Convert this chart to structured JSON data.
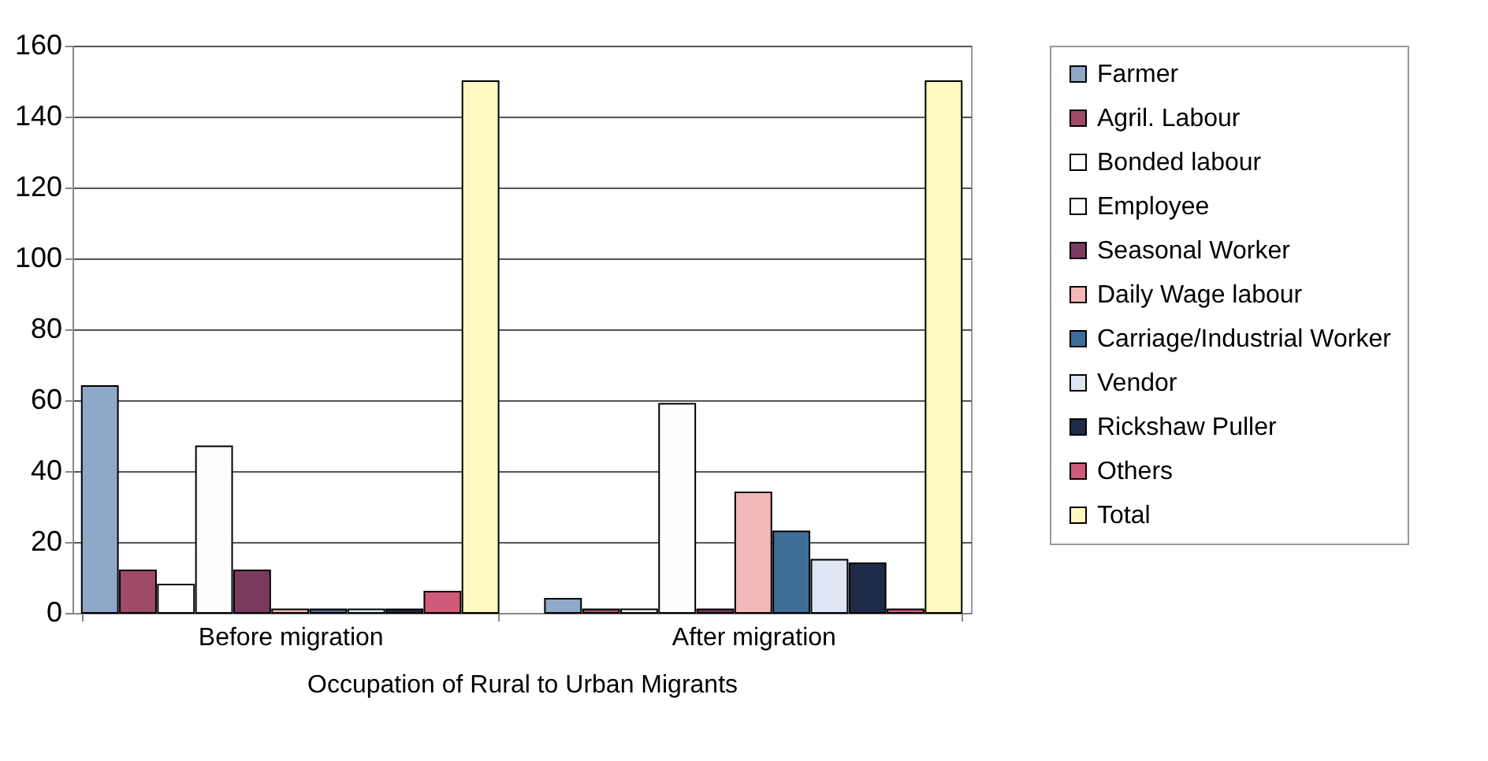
{
  "chart_data": {
    "type": "bar",
    "xlabel": "Occupation of Rural to Urban Migrants",
    "categories": [
      "Before migration",
      "After migration"
    ],
    "series": [
      {
        "name": "Farmer",
        "color": "#8fa8c8",
        "values": [
          64,
          4
        ]
      },
      {
        "name": "Agril. Labour",
        "color": "#a04a6a",
        "values": [
          12,
          1
        ]
      },
      {
        "name": "Bonded labour",
        "color": "#ffffff",
        "values": [
          8,
          1
        ]
      },
      {
        "name": "Employee",
        "color": "#fdfdfd",
        "values": [
          47,
          59
        ]
      },
      {
        "name": "Seasonal Worker",
        "color": "#7a3a5e",
        "values": [
          12,
          1
        ]
      },
      {
        "name": "Daily Wage labour",
        "color": "#f4b8b8",
        "values": [
          1,
          34
        ]
      },
      {
        "name": "Carriage/Industrial Worker",
        "color": "#3e6e98",
        "values": [
          1,
          23
        ]
      },
      {
        "name": "Vendor",
        "color": "#dde6f2",
        "values": [
          1,
          15
        ]
      },
      {
        "name": "Rickshaw  Puller",
        "color": "#1e2a48",
        "values": [
          1,
          14
        ]
      },
      {
        "name": "Others",
        "color": "#d05a7a",
        "values": [
          6,
          1
        ]
      },
      {
        "name": "Total",
        "color": "#fff8c0",
        "values": [
          150,
          150
        ]
      }
    ],
    "ylim": [
      0,
      160
    ],
    "yticks": [
      0,
      20,
      40,
      60,
      80,
      100,
      120,
      140,
      160
    ],
    "grid": "y",
    "legend": "right"
  }
}
